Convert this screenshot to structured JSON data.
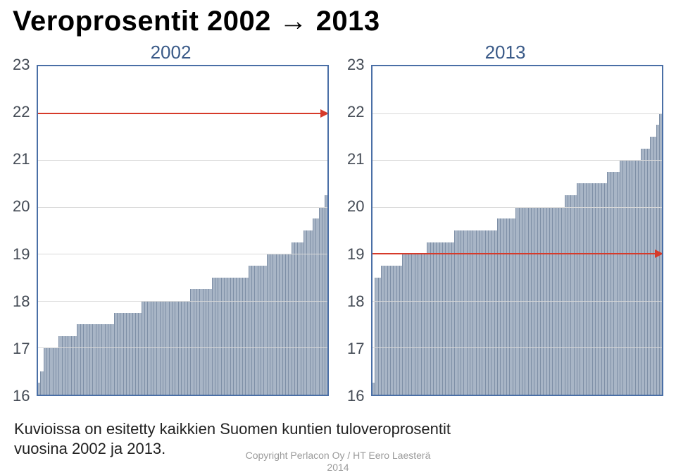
{
  "title_prefix": "Veroprosentit 2002 ",
  "title_arrow": "→",
  "title_suffix": " 2013",
  "caption_line1": "Kuvioissa on esitetty kaikkien Suomen kuntien tuloveroprosentit",
  "caption_line2": "vuosina 2002 ja 2013.",
  "copyright_line1": "Copyright Perlacon Oy / HT Eero Laesterä",
  "copyright_line2": "2014",
  "ylim_min": 16,
  "ylim_max": 23,
  "yticks": [
    16,
    17,
    18,
    19,
    20,
    21,
    22,
    23
  ],
  "chart_border_color": "#4a6fa6",
  "grid_color": "#d9d9d9",
  "bar_fill_color": "#a8b5c6",
  "bar_border_color": "#7e8fa6",
  "hline_color": "#d63a2a",
  "background_color": "#ffffff",
  "tick_font_color": "#444b55",
  "tick_font_size": 22,
  "chart_title_color": "#3a5a88",
  "chart_title_fontsize": 26,
  "title_fontsize": 40,
  "caption_fontsize": 22,
  "chartA": {
    "label": "2002",
    "hlines": [
      22
    ],
    "values": [
      16.25,
      16.5,
      17,
      17,
      17,
      17,
      17,
      17.25,
      17.25,
      17.25,
      17.25,
      17.25,
      17.25,
      17.5,
      17.5,
      17.5,
      17.5,
      17.5,
      17.5,
      17.5,
      17.5,
      17.5,
      17.5,
      17.5,
      17.5,
      17.75,
      17.75,
      17.75,
      17.75,
      17.75,
      17.75,
      17.75,
      17.75,
      17.75,
      18,
      18,
      18,
      18,
      18,
      18,
      18,
      18,
      18,
      18,
      18,
      18,
      18,
      18,
      18,
      18,
      18.25,
      18.25,
      18.25,
      18.25,
      18.25,
      18.25,
      18.25,
      18.5,
      18.5,
      18.5,
      18.5,
      18.5,
      18.5,
      18.5,
      18.5,
      18.5,
      18.5,
      18.5,
      18.5,
      18.75,
      18.75,
      18.75,
      18.75,
      18.75,
      18.75,
      19,
      19,
      19,
      19,
      19,
      19,
      19,
      19,
      19.25,
      19.25,
      19.25,
      19.25,
      19.5,
      19.5,
      19.5,
      19.75,
      19.75,
      20,
      20,
      20.25
    ]
  },
  "chartB": {
    "label": "2013",
    "hlines": [
      19
    ],
    "values": [
      16.25,
      18.5,
      18.5,
      18.75,
      18.75,
      18.75,
      18.75,
      18.75,
      18.75,
      18.75,
      19,
      19,
      19,
      19,
      19,
      19,
      19,
      19,
      19.25,
      19.25,
      19.25,
      19.25,
      19.25,
      19.25,
      19.25,
      19.25,
      19.25,
      19.5,
      19.5,
      19.5,
      19.5,
      19.5,
      19.5,
      19.5,
      19.5,
      19.5,
      19.5,
      19.5,
      19.5,
      19.5,
      19.5,
      19.75,
      19.75,
      19.75,
      19.75,
      19.75,
      19.75,
      20,
      20,
      20,
      20,
      20,
      20,
      20,
      20,
      20,
      20,
      20,
      20,
      20,
      20,
      20,
      20,
      20.25,
      20.25,
      20.25,
      20.25,
      20.5,
      20.5,
      20.5,
      20.5,
      20.5,
      20.5,
      20.5,
      20.5,
      20.5,
      20.5,
      20.75,
      20.75,
      20.75,
      20.75,
      21,
      21,
      21,
      21,
      21,
      21,
      21,
      21.25,
      21.25,
      21.25,
      21.5,
      21.5,
      21.75,
      22
    ]
  }
}
